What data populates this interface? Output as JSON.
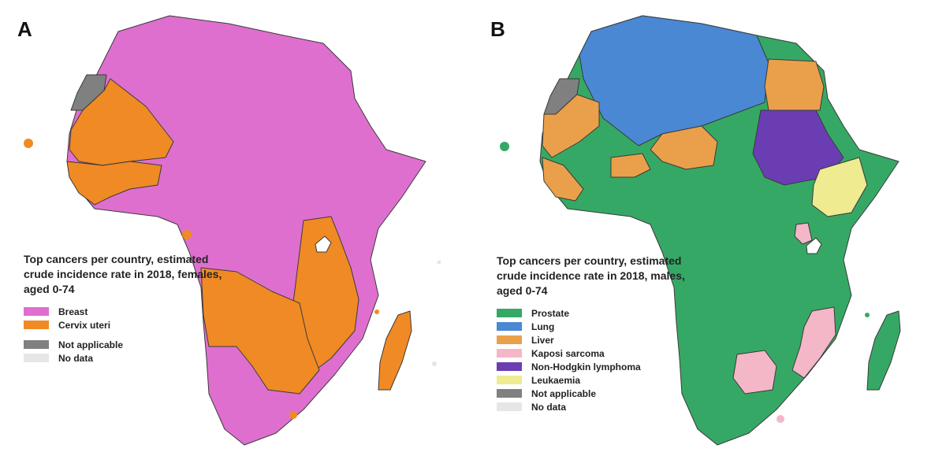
{
  "panels": [
    {
      "id": "A",
      "label": "A",
      "legend_title": "Top cancers per country, estimated crude incidence rate in 2018, females, aged 0-74",
      "legend": [
        {
          "label": "Breast",
          "color": "#df6fcf"
        },
        {
          "label": "Cervix uteri",
          "color": "#f08a24"
        },
        {
          "label": "Not applicable",
          "color": "#808080"
        },
        {
          "label": "No data",
          "color": "#e6e6e6"
        }
      ]
    },
    {
      "id": "B",
      "label": "B",
      "legend_title": "Top cancers per country, estimated crude incidence rate in 2018, males, aged 0-74",
      "legend": [
        {
          "label": "Prostate",
          "color": "#36a865"
        },
        {
          "label": "Lung",
          "color": "#4a88d4"
        },
        {
          "label": "Liver",
          "color": "#eaa04a"
        },
        {
          "label": "Kaposi sarcoma",
          "color": "#f3b7c7"
        },
        {
          "label": "Non-Hodgkin lymphoma",
          "color": "#6a3db3"
        },
        {
          "label": "Leukaemia",
          "color": "#eeeb90"
        },
        {
          "label": "Not applicable",
          "color": "#808080"
        },
        {
          "label": "No data",
          "color": "#e6e6e6"
        }
      ]
    }
  ]
}
